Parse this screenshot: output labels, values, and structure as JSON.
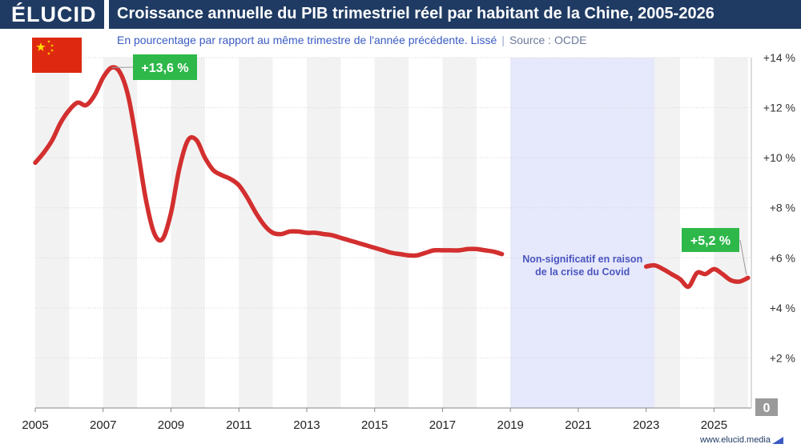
{
  "brand": {
    "logo": "ÉLUCID",
    "website": "www.elucid.media"
  },
  "header": {
    "title": "Croissance annuelle du PIB trimestriel réel par habitant de la Chine, 2005-2026",
    "subtitle": "En pourcentage par rapport au même trimestre de l'année précédente. Lissé",
    "source": "Source : OCDE"
  },
  "flag": {
    "country": "Chine",
    "color": "#de2910",
    "star_color": "#ffde00"
  },
  "chart_data": {
    "type": "line",
    "title": "Croissance annuelle du PIB trimestriel réel par habitant de la Chine, 2005-2026",
    "xlabel": "",
    "ylabel": "",
    "xlim": [
      2005,
      2026.1
    ],
    "ylim": [
      0,
      14
    ],
    "x_ticks": [
      2005,
      2007,
      2009,
      2011,
      2013,
      2015,
      2017,
      2019,
      2021,
      2023,
      2025
    ],
    "x_tick_labels": [
      "2005",
      "2007",
      "2009",
      "2011",
      "2013",
      "2015",
      "2017",
      "2019",
      "2021",
      "2023",
      "2025"
    ],
    "y_ticks": [
      2,
      4,
      6,
      8,
      10,
      12,
      14
    ],
    "y_tick_labels": [
      "+2 %",
      "+4 %",
      "+6 %",
      "+8 %",
      "+10 %",
      "+12 %",
      "+14 %"
    ],
    "zero_label": "0",
    "axis_side": "right",
    "grid": true,
    "line_color": "#d32f2f",
    "series": [
      {
        "segment": "avant-covid",
        "points": [
          [
            2005.0,
            9.8
          ],
          [
            2005.25,
            10.2
          ],
          [
            2005.5,
            10.7
          ],
          [
            2005.75,
            11.4
          ],
          [
            2006.0,
            11.9
          ],
          [
            2006.25,
            12.2
          ],
          [
            2006.5,
            12.1
          ],
          [
            2006.75,
            12.5
          ],
          [
            2007.0,
            13.2
          ],
          [
            2007.25,
            13.6
          ],
          [
            2007.5,
            13.4
          ],
          [
            2007.75,
            12.4
          ],
          [
            2008.0,
            10.5
          ],
          [
            2008.25,
            8.4
          ],
          [
            2008.5,
            7.0
          ],
          [
            2008.75,
            6.75
          ],
          [
            2009.0,
            7.8
          ],
          [
            2009.25,
            9.6
          ],
          [
            2009.5,
            10.7
          ],
          [
            2009.75,
            10.7
          ],
          [
            2010.0,
            10.0
          ],
          [
            2010.25,
            9.5
          ],
          [
            2010.5,
            9.3
          ],
          [
            2010.75,
            9.15
          ],
          [
            2011.0,
            8.9
          ],
          [
            2011.25,
            8.4
          ],
          [
            2011.5,
            7.8
          ],
          [
            2011.75,
            7.3
          ],
          [
            2012.0,
            7.0
          ],
          [
            2012.25,
            6.95
          ],
          [
            2012.5,
            7.05
          ],
          [
            2012.75,
            7.05
          ],
          [
            2013.0,
            7.0
          ],
          [
            2013.25,
            7.0
          ],
          [
            2013.5,
            6.95
          ],
          [
            2013.75,
            6.9
          ],
          [
            2014.0,
            6.8
          ],
          [
            2014.25,
            6.7
          ],
          [
            2014.5,
            6.6
          ],
          [
            2014.75,
            6.5
          ],
          [
            2015.0,
            6.4
          ],
          [
            2015.25,
            6.3
          ],
          [
            2015.5,
            6.2
          ],
          [
            2015.75,
            6.15
          ],
          [
            2016.0,
            6.1
          ],
          [
            2016.25,
            6.1
          ],
          [
            2016.5,
            6.2
          ],
          [
            2016.75,
            6.3
          ],
          [
            2017.0,
            6.3
          ],
          [
            2017.25,
            6.3
          ],
          [
            2017.5,
            6.3
          ],
          [
            2017.75,
            6.35
          ],
          [
            2018.0,
            6.35
          ],
          [
            2018.25,
            6.3
          ],
          [
            2018.5,
            6.25
          ],
          [
            2018.75,
            6.15
          ]
        ]
      },
      {
        "segment": "apres-covid",
        "points": [
          [
            2023.0,
            5.65
          ],
          [
            2023.25,
            5.7
          ],
          [
            2023.5,
            5.55
          ],
          [
            2023.75,
            5.35
          ],
          [
            2024.0,
            5.15
          ],
          [
            2024.25,
            4.85
          ],
          [
            2024.5,
            5.4
          ],
          [
            2024.75,
            5.35
          ],
          [
            2025.0,
            5.55
          ],
          [
            2025.25,
            5.35
          ],
          [
            2025.5,
            5.1
          ],
          [
            2025.75,
            5.05
          ],
          [
            2026.0,
            5.2
          ]
        ]
      }
    ],
    "shaded_region": {
      "x": [
        2019.0,
        2023.25
      ],
      "color": "#e6e8fb",
      "label_line1": "Non-significatif en raison",
      "label_line2": "de la crise du Covid",
      "label_color": "#4a55c0"
    },
    "alternating_bands": {
      "color": "#f2f2f2",
      "even_year_start": 2005
    },
    "annotations": [
      {
        "text": "+13,6 %",
        "x": 2007.25,
        "y": 13.6,
        "color": "#2eb84a"
      },
      {
        "text": "+5,2 %",
        "x": 2026.0,
        "y": 5.2,
        "color": "#2eb84a"
      }
    ]
  }
}
